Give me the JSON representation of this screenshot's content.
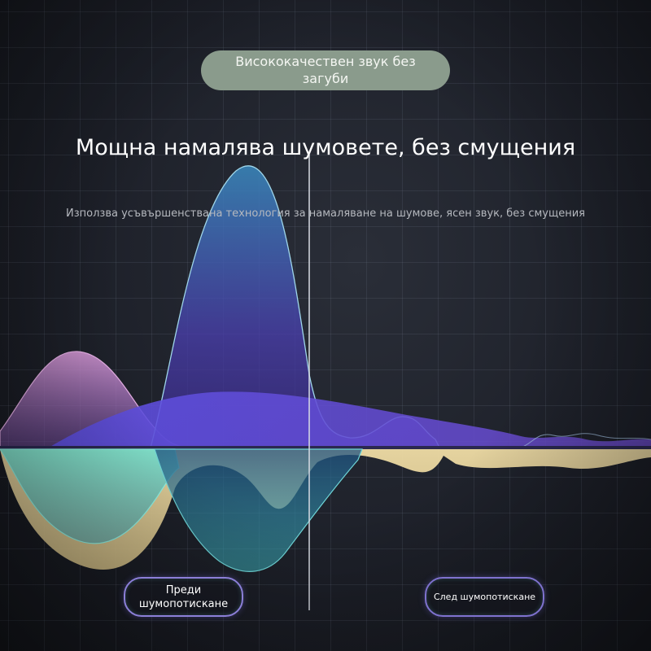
{
  "badge": {
    "text": "Висококачествен звук без загуби"
  },
  "headline": {
    "title": "Мощна намалява шумовете, без смущения"
  },
  "description": {
    "text": "Използва усъвършенствана технология за намаляване на шумове, ясен звук, без смущения"
  },
  "labels": {
    "before": "Преди шумопотискане",
    "after": "След шумопотискане"
  },
  "colors": {
    "badge_bg": "#8a9b8c",
    "purple_wave": "#c28ad0",
    "violet_wave": "#6a4fd6",
    "blue_wave": "#2f6fae",
    "cream_wave": "#e6d39c",
    "teal_wave": "#6fe0cf",
    "pill_border": "#8c7fd8"
  }
}
